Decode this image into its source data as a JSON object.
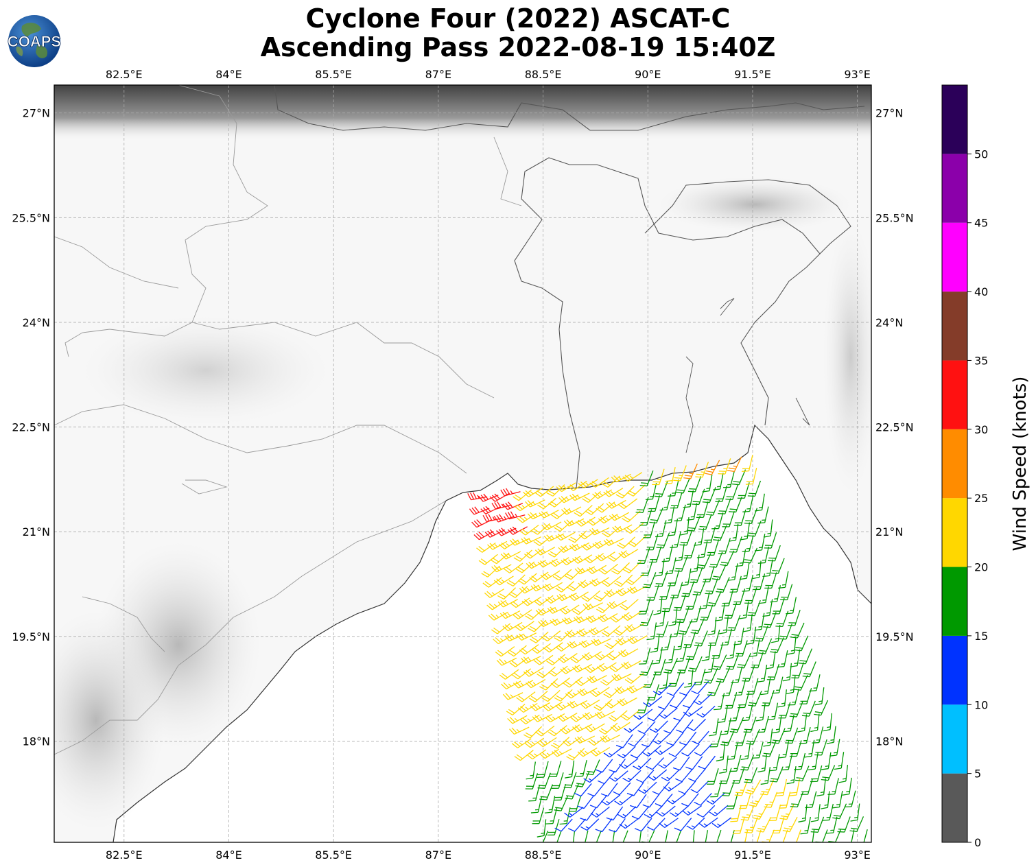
{
  "title": {
    "line1": "Cyclone Four (2022) ASCAT-C",
    "line2": "Ascending Pass 2022-08-19 15:40Z"
  },
  "logo": {
    "text": "COAPS",
    "icon": "globe-icon"
  },
  "map": {
    "lon_range": [
      81.5,
      93.2
    ],
    "lat_range": [
      16.55,
      27.4
    ],
    "lon_ticks": [
      {
        "value": 82.5,
        "label": "82.5°E"
      },
      {
        "value": 84,
        "label": "84°E"
      },
      {
        "value": 85.5,
        "label": "85.5°E"
      },
      {
        "value": 87,
        "label": "87°E"
      },
      {
        "value": 88.5,
        "label": "88.5°E"
      },
      {
        "value": 90,
        "label": "90°E"
      },
      {
        "value": 91.5,
        "label": "91.5°E"
      },
      {
        "value": 93,
        "label": "93°E"
      }
    ],
    "lat_ticks": [
      {
        "value": 27,
        "label": "27°N"
      },
      {
        "value": 25.5,
        "label": "25.5°N"
      },
      {
        "value": 24,
        "label": "24°N"
      },
      {
        "value": 22.5,
        "label": "22.5°N"
      },
      {
        "value": 21,
        "label": "21°N"
      },
      {
        "value": 19.5,
        "label": "19.5°N"
      },
      {
        "value": 18,
        "label": "18°N"
      }
    ],
    "grid": true,
    "land_color": "#f7f7f7",
    "coast_color": "#333333",
    "border_color": "#888888"
  },
  "colorbar": {
    "label": "Wind Speed (knots)",
    "bins": [
      {
        "from": 0,
        "to": 5,
        "color": "#595959"
      },
      {
        "from": 5,
        "to": 10,
        "color": "#00bfff"
      },
      {
        "from": 10,
        "to": 15,
        "color": "#0033ff"
      },
      {
        "from": 15,
        "to": 20,
        "color": "#009900"
      },
      {
        "from": 20,
        "to": 25,
        "color": "#ffd700"
      },
      {
        "from": 25,
        "to": 30,
        "color": "#ff8c00"
      },
      {
        "from": 30,
        "to": 35,
        "color": "#ff1111"
      },
      {
        "from": 35,
        "to": 40,
        "color": "#843c29"
      },
      {
        "from": 40,
        "to": 45,
        "color": "#ff00ff"
      },
      {
        "from": 45,
        "to": 50,
        "color": "#8b00aa"
      },
      {
        "from": 50,
        "to": 55,
        "color": "#2b0059"
      }
    ],
    "tick_labels": [
      "0",
      "5",
      "10",
      "15",
      "20",
      "25",
      "30",
      "35",
      "40",
      "45",
      "50"
    ]
  },
  "chart_data": {
    "type": "wind-barbs",
    "units": "knots",
    "swath": {
      "southwest_corner": [
        88.6,
        16.55
      ],
      "northwest_corner": [
        87.7,
        21.5
      ],
      "northeast_corner": [
        91.5,
        22.1
      ],
      "southeast_corner": [
        93.2,
        16.55
      ]
    },
    "speed_zones": [
      {
        "region": "north of 22°N near Bangladesh coast",
        "speed_range": [
          20,
          28
        ],
        "direction_from_deg": 200
      },
      {
        "region": "northwest edge near 87.8°E 21.3°N",
        "speed_range": [
          30,
          35
        ],
        "direction_from_deg": 250
      },
      {
        "region": "west part of swath 88.5–90°E, 18–21°N",
        "speed_range": [
          20,
          25
        ],
        "direction_from_deg": 235
      },
      {
        "region": "center 89–91°E, 17–19°N",
        "speed_range": [
          10,
          15
        ],
        "direction_from_deg": 225
      },
      {
        "region": "east 91–93°E, 17.5–20.5°N",
        "speed_range": [
          15,
          20
        ],
        "direction_from_deg": 195
      },
      {
        "region": "south-east 91.3–92.2°E, 16.6–17.5°N",
        "speed_range": [
          20,
          25
        ],
        "direction_from_deg": 200
      }
    ]
  }
}
